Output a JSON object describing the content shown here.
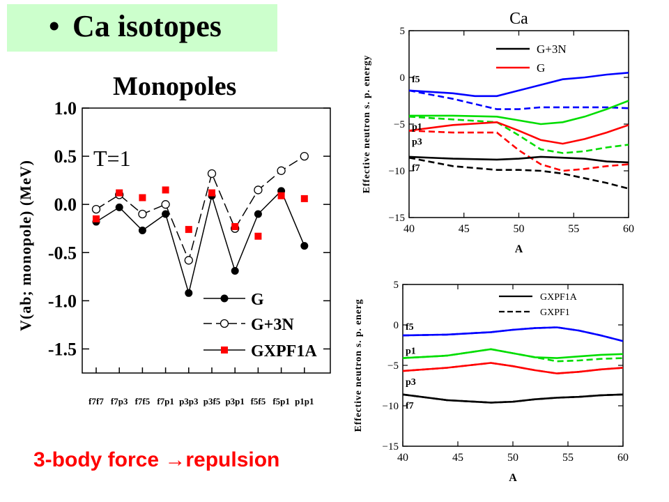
{
  "slide": {
    "bullet": "•",
    "title": "Ca isotopes",
    "subtitle": "Monopoles",
    "footer": "3-body force →repulsion"
  },
  "colors": {
    "G": "#000000",
    "G+3N": "#000000",
    "GXPF1A": "#ff0000",
    "f5": "#0000ff",
    "p1": "#00dd00",
    "p3": "#ff0000",
    "f7": "#000000",
    "title_bg": "#ccffcc"
  },
  "chart_data": [
    {
      "type": "line",
      "title": "",
      "xlabel": "",
      "ylabel": "V(ab; monopole) (MeV)",
      "annotation": "T=1",
      "ylim": [
        -1.75,
        1.0
      ],
      "yticks": [
        1.0,
        0.5,
        0.0,
        -0.5,
        -1.0,
        -1.5
      ],
      "ytick_labels": [
        "1.0",
        "0.5",
        "0.0",
        "-0.5",
        "-1.0",
        "-1.5"
      ],
      "categories": [
        "f7f7",
        "f7p3",
        "f7f5",
        "f7p1",
        "p3p3",
        "p3f5",
        "p3p1",
        "f5f5",
        "f5p1",
        "p1p1"
      ],
      "legend_position": "bottom-right",
      "series": [
        {
          "name": "G",
          "style": "solid-filled-circle",
          "values": [
            -0.18,
            -0.03,
            -0.27,
            -0.1,
            -0.92,
            0.09,
            -0.69,
            -0.1,
            0.14,
            -0.43
          ]
        },
        {
          "name": "G+3N",
          "style": "dashed-open-circle",
          "values": [
            -0.05,
            0.1,
            -0.1,
            0.0,
            -0.58,
            0.32,
            -0.25,
            0.15,
            0.35,
            0.5
          ]
        },
        {
          "name": "GXPF1A",
          "style": "red-square",
          "values": [
            -0.15,
            0.12,
            0.07,
            0.15,
            -0.26,
            0.12,
            -0.23,
            -0.33,
            0.09,
            0.06
          ]
        }
      ]
    },
    {
      "type": "line",
      "title": "Ca",
      "xlabel": "A",
      "ylabel": "Effective neutron s. p. energy",
      "xlim": [
        40,
        60
      ],
      "ylim": [
        -15,
        5
      ],
      "xticks": [
        40,
        45,
        50,
        55,
        60
      ],
      "yticks": [
        5,
        0,
        -5,
        -10,
        -15
      ],
      "legend_position": "top-right",
      "legend": [
        {
          "name": "G+3N",
          "color": "#000000"
        },
        {
          "name": "G",
          "color": "#ff0000"
        }
      ],
      "orbit_labels": [
        "f5",
        "p1",
        "p3",
        "f7"
      ],
      "series": [
        {
          "orbit": "f5",
          "model": "G+3N",
          "x": [
            40,
            44,
            46,
            48,
            50,
            52,
            54,
            56,
            58,
            60
          ],
          "y": [
            -1.4,
            -1.7,
            -2.0,
            -2.0,
            -1.4,
            -0.8,
            -0.2,
            0.0,
            0.3,
            0.5
          ]
        },
        {
          "orbit": "f5",
          "model": "G",
          "x": [
            40,
            44,
            48,
            50,
            52,
            54,
            56,
            58,
            60
          ],
          "y": [
            -1.4,
            -2.3,
            -3.4,
            -3.4,
            -3.2,
            -3.2,
            -3.2,
            -3.2,
            -3.3
          ]
        },
        {
          "orbit": "p1",
          "model": "G+3N",
          "x": [
            40,
            44,
            48,
            50,
            52,
            54,
            56,
            58,
            60
          ],
          "y": [
            -4.1,
            -4.1,
            -4.2,
            -4.6,
            -5.0,
            -4.8,
            -4.2,
            -3.4,
            -2.5
          ]
        },
        {
          "orbit": "p1",
          "model": "G",
          "x": [
            40,
            44,
            48,
            50,
            52,
            54,
            56,
            58,
            60
          ],
          "y": [
            -4.2,
            -4.5,
            -4.8,
            -6.2,
            -7.7,
            -8.1,
            -7.9,
            -7.5,
            -7.2
          ]
        },
        {
          "orbit": "p3",
          "model": "G+3N",
          "x": [
            40,
            44,
            48,
            50,
            52,
            54,
            56,
            58,
            60
          ],
          "y": [
            -5.7,
            -5.1,
            -4.8,
            -5.7,
            -6.7,
            -7.1,
            -6.6,
            -5.9,
            -5.1
          ]
        },
        {
          "orbit": "p3",
          "model": "G",
          "x": [
            40,
            44,
            48,
            50,
            52,
            54,
            56,
            58,
            60
          ],
          "y": [
            -5.7,
            -5.9,
            -5.9,
            -7.8,
            -9.3,
            -10.0,
            -9.8,
            -9.5,
            -9.3
          ]
        },
        {
          "orbit": "f7",
          "model": "G+3N",
          "x": [
            40,
            44,
            48,
            50,
            52,
            54,
            56,
            58,
            60
          ],
          "y": [
            -8.5,
            -8.7,
            -8.8,
            -8.7,
            -8.5,
            -8.6,
            -8.7,
            -9.0,
            -9.1
          ]
        },
        {
          "orbit": "f7",
          "model": "G",
          "x": [
            40,
            44,
            48,
            50,
            52,
            54,
            56,
            58,
            60
          ],
          "y": [
            -8.6,
            -9.5,
            -9.9,
            -9.9,
            -10.0,
            -10.3,
            -10.8,
            -11.3,
            -11.9
          ]
        }
      ]
    },
    {
      "type": "line",
      "title": "",
      "xlabel": "A",
      "ylabel": "Effective neutron s. p. energ",
      "xlim": [
        40,
        60
      ],
      "ylim": [
        -15,
        5
      ],
      "xticks": [
        40,
        45,
        50,
        55,
        60
      ],
      "yticks": [
        5,
        0,
        -5,
        -10,
        -15
      ],
      "legend_position": "top-right",
      "legend": [
        {
          "name": "GXPF1A",
          "style": "solid"
        },
        {
          "name": "GXPF1",
          "style": "dashed"
        }
      ],
      "orbit_labels": [
        "f5",
        "p1",
        "p3",
        "f7"
      ],
      "series": [
        {
          "orbit": "f5",
          "model": "GXPF1A",
          "x": [
            40,
            44,
            48,
            50,
            52,
            54,
            56,
            58,
            60
          ],
          "y": [
            -1.3,
            -1.2,
            -0.9,
            -0.6,
            -0.4,
            -0.3,
            -0.7,
            -1.3,
            -2.0
          ]
        },
        {
          "orbit": "f5",
          "model": "GXPF1",
          "x": [
            40,
            44,
            48,
            50,
            52,
            54,
            56,
            58,
            60
          ],
          "y": [
            -1.3,
            -1.2,
            -0.9,
            -0.6,
            -0.4,
            -0.3,
            -0.7,
            -1.3,
            -2.0
          ]
        },
        {
          "orbit": "p1",
          "model": "GXPF1A",
          "x": [
            40,
            44,
            48,
            50,
            52,
            54,
            56,
            58,
            60
          ],
          "y": [
            -4.1,
            -3.8,
            -3.0,
            -3.5,
            -4.0,
            -4.1,
            -3.9,
            -3.7,
            -3.6
          ]
        },
        {
          "orbit": "p1",
          "model": "GXPF1",
          "x": [
            40,
            44,
            48,
            50,
            52,
            54,
            56,
            58,
            60
          ],
          "y": [
            -4.1,
            -3.8,
            -3.0,
            -3.5,
            -4.0,
            -4.5,
            -4.4,
            -4.2,
            -4.1
          ]
        },
        {
          "orbit": "p3",
          "model": "GXPF1A",
          "x": [
            40,
            44,
            48,
            50,
            52,
            54,
            56,
            58,
            60
          ],
          "y": [
            -5.7,
            -5.3,
            -4.7,
            -5.1,
            -5.6,
            -6.0,
            -5.8,
            -5.5,
            -5.3
          ]
        },
        {
          "orbit": "p3",
          "model": "GXPF1",
          "x": [
            40,
            44,
            48,
            50,
            52,
            54,
            56,
            58,
            60
          ],
          "y": [
            -5.7,
            -5.3,
            -4.7,
            -5.1,
            -5.6,
            -6.0,
            -5.8,
            -5.5,
            -5.3
          ]
        },
        {
          "orbit": "f7",
          "model": "GXPF1A",
          "x": [
            40,
            44,
            48,
            50,
            52,
            54,
            56,
            58,
            60
          ],
          "y": [
            -8.6,
            -9.3,
            -9.6,
            -9.5,
            -9.2,
            -9.0,
            -8.9,
            -8.7,
            -8.6
          ]
        },
        {
          "orbit": "f7",
          "model": "GXPF1",
          "x": [
            40,
            44,
            48,
            50,
            52,
            54,
            56,
            58,
            60
          ],
          "y": [
            -8.6,
            -9.3,
            -9.6,
            -9.5,
            -9.2,
            -9.0,
            -8.9,
            -8.7,
            -8.6
          ]
        }
      ]
    }
  ]
}
